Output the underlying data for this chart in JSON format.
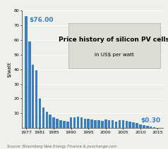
{
  "title_line1": "Price history of silicon PV cells",
  "title_line2": "in US$ per watt",
  "ylabel": "$/watt",
  "source": "Source: Bloomberg New Energy Finance & pvxchange.com",
  "annotation_high": "$76.00",
  "annotation_low": "$0.30",
  "bar_color": "#3a7ebf",
  "background_color": "#f0f0eb",
  "years": [
    1977,
    1978,
    1979,
    1980,
    1981,
    1982,
    1983,
    1984,
    1985,
    1986,
    1987,
    1988,
    1989,
    1990,
    1991,
    1992,
    1993,
    1994,
    1995,
    1996,
    1997,
    1998,
    1999,
    2000,
    2001,
    2002,
    2003,
    2004,
    2005,
    2006,
    2007,
    2008,
    2009,
    2010,
    2011,
    2012,
    2013,
    2014,
    2015
  ],
  "values": [
    76.0,
    59.0,
    43.0,
    39.5,
    20.0,
    14.0,
    11.0,
    9.0,
    7.5,
    6.5,
    5.5,
    5.0,
    4.5,
    7.5,
    7.5,
    8.0,
    7.5,
    6.5,
    6.5,
    6.0,
    5.5,
    5.5,
    5.0,
    6.0,
    5.5,
    5.5,
    4.5,
    5.5,
    5.5,
    5.0,
    4.5,
    4.0,
    3.5,
    2.5,
    2.0,
    1.5,
    1.0,
    0.7,
    0.3
  ],
  "ylim": [
    0,
    80
  ],
  "yticks": [
    10,
    20,
    30,
    40,
    50,
    60,
    70,
    80
  ],
  "xtick_years": [
    1977,
    1981,
    1985,
    1990,
    1995,
    2000,
    2005,
    2010,
    2015
  ],
  "title_fontsize": 6.5,
  "subtitle_fontsize": 5.2,
  "annotation_fontsize": 6.5,
  "ylabel_fontsize": 5.0,
  "tick_fontsize": 4.5,
  "source_fontsize": 3.8,
  "box_color": "#ddddd5",
  "box_edge_color": "#aaaaaa"
}
